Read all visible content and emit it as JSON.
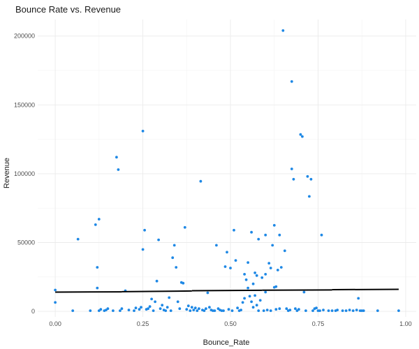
{
  "chart_data": {
    "type": "scatter",
    "title": "Bounce Rate vs. Revenue",
    "xlabel": "Bounce_Rate",
    "ylabel": "Revenue",
    "xlim": [
      -0.05,
      1.03
    ],
    "ylim": [
      -4000,
      212000
    ],
    "x_ticks": [
      0,
      0.25,
      0.5,
      0.75,
      1
    ],
    "x_tick_labels": [
      "0.00",
      "0.25",
      "0.50",
      "0.75",
      "1.00"
    ],
    "x_minor_ticks": [
      0.125,
      0.375,
      0.625,
      0.875
    ],
    "y_ticks": [
      0,
      50000,
      100000,
      150000,
      200000
    ],
    "y_tick_labels": [
      "0",
      "50000",
      "100000",
      "150000",
      "200000"
    ],
    "y_minor_ticks": [
      25000,
      75000,
      125000,
      175000
    ],
    "grid": true,
    "point_color": "#1e88e5",
    "trend_color": "#000000",
    "trend_line": {
      "segments": [
        [
          [
            0.0,
            14000
          ],
          [
            0.19,
            14200
          ]
        ],
        [
          [
            0.19,
            14300
          ],
          [
            0.39,
            14800
          ]
        ],
        [
          [
            0.39,
            15000
          ],
          [
            0.59,
            15300
          ]
        ],
        [
          [
            0.59,
            15400
          ],
          [
            0.79,
            15600
          ]
        ],
        [
          [
            0.79,
            15800
          ],
          [
            0.98,
            16000
          ]
        ]
      ]
    },
    "points": [
      [
        0.0,
        15500
      ],
      [
        0.0,
        6500
      ],
      [
        0.05,
        500
      ],
      [
        0.065,
        52500
      ],
      [
        0.1,
        500
      ],
      [
        0.115,
        63000
      ],
      [
        0.12,
        32000
      ],
      [
        0.12,
        17000
      ],
      [
        0.125,
        67000
      ],
      [
        0.125,
        500
      ],
      [
        0.13,
        1500
      ],
      [
        0.14,
        500
      ],
      [
        0.145,
        1000
      ],
      [
        0.15,
        2000
      ],
      [
        0.165,
        500
      ],
      [
        0.175,
        112000
      ],
      [
        0.18,
        103000
      ],
      [
        0.185,
        500
      ],
      [
        0.19,
        2000
      ],
      [
        0.2,
        15000
      ],
      [
        0.21,
        1000
      ],
      [
        0.225,
        500
      ],
      [
        0.23,
        2500
      ],
      [
        0.24,
        1500
      ],
      [
        0.245,
        3000
      ],
      [
        0.25,
        45000
      ],
      [
        0.25,
        131000
      ],
      [
        0.255,
        59000
      ],
      [
        0.26,
        1500
      ],
      [
        0.265,
        2000
      ],
      [
        0.27,
        3500
      ],
      [
        0.275,
        9000
      ],
      [
        0.28,
        500
      ],
      [
        0.285,
        7000
      ],
      [
        0.29,
        22000
      ],
      [
        0.295,
        52000
      ],
      [
        0.3,
        2000
      ],
      [
        0.305,
        4500
      ],
      [
        0.31,
        1000
      ],
      [
        0.315,
        500
      ],
      [
        0.32,
        3000
      ],
      [
        0.325,
        10000
      ],
      [
        0.33,
        500
      ],
      [
        0.335,
        39000
      ],
      [
        0.34,
        48000
      ],
      [
        0.345,
        32000
      ],
      [
        0.35,
        7000
      ],
      [
        0.355,
        2000
      ],
      [
        0.36,
        21000
      ],
      [
        0.365,
        20500
      ],
      [
        0.37,
        61000
      ],
      [
        0.375,
        1500
      ],
      [
        0.38,
        4000
      ],
      [
        0.385,
        500
      ],
      [
        0.39,
        3000
      ],
      [
        0.395,
        1000
      ],
      [
        0.4,
        2500
      ],
      [
        0.405,
        500
      ],
      [
        0.41,
        2000
      ],
      [
        0.415,
        94500
      ],
      [
        0.42,
        1000
      ],
      [
        0.425,
        500
      ],
      [
        0.43,
        2000
      ],
      [
        0.435,
        13500
      ],
      [
        0.44,
        3000
      ],
      [
        0.445,
        1000
      ],
      [
        0.45,
        500
      ],
      [
        0.455,
        500
      ],
      [
        0.46,
        48000
      ],
      [
        0.465,
        2000
      ],
      [
        0.47,
        1000
      ],
      [
        0.475,
        500
      ],
      [
        0.48,
        500
      ],
      [
        0.485,
        32500
      ],
      [
        0.49,
        43000
      ],
      [
        0.495,
        1500
      ],
      [
        0.5,
        31500
      ],
      [
        0.505,
        500
      ],
      [
        0.51,
        59000
      ],
      [
        0.515,
        37000
      ],
      [
        0.52,
        2500
      ],
      [
        0.525,
        500
      ],
      [
        0.53,
        1000
      ],
      [
        0.535,
        6500
      ],
      [
        0.54,
        27000
      ],
      [
        0.54,
        9500
      ],
      [
        0.545,
        23000
      ],
      [
        0.55,
        35500
      ],
      [
        0.55,
        17000
      ],
      [
        0.555,
        11000
      ],
      [
        0.56,
        57500
      ],
      [
        0.56,
        7000
      ],
      [
        0.565,
        20000
      ],
      [
        0.565,
        3000
      ],
      [
        0.57,
        28000
      ],
      [
        0.57,
        11500
      ],
      [
        0.575,
        26000
      ],
      [
        0.575,
        4500
      ],
      [
        0.58,
        52500
      ],
      [
        0.58,
        500
      ],
      [
        0.585,
        8000
      ],
      [
        0.59,
        24500
      ],
      [
        0.595,
        500
      ],
      [
        0.6,
        55500
      ],
      [
        0.6,
        27000
      ],
      [
        0.6,
        14000
      ],
      [
        0.605,
        1000
      ],
      [
        0.61,
        35000
      ],
      [
        0.615,
        31500
      ],
      [
        0.615,
        500
      ],
      [
        0.62,
        48000
      ],
      [
        0.625,
        62500
      ],
      [
        0.625,
        17500
      ],
      [
        0.63,
        18000
      ],
      [
        0.63,
        1500
      ],
      [
        0.635,
        30000
      ],
      [
        0.64,
        55500
      ],
      [
        0.64,
        2000
      ],
      [
        0.645,
        32000
      ],
      [
        0.65,
        204000
      ],
      [
        0.655,
        44000
      ],
      [
        0.66,
        2000
      ],
      [
        0.665,
        500
      ],
      [
        0.67,
        1000
      ],
      [
        0.675,
        167000
      ],
      [
        0.675,
        103500
      ],
      [
        0.68,
        96000
      ],
      [
        0.685,
        2000
      ],
      [
        0.69,
        500
      ],
      [
        0.695,
        1500
      ],
      [
        0.7,
        128500
      ],
      [
        0.705,
        127000
      ],
      [
        0.71,
        14000
      ],
      [
        0.715,
        500
      ],
      [
        0.72,
        98000
      ],
      [
        0.725,
        83500
      ],
      [
        0.73,
        96000
      ],
      [
        0.735,
        500
      ],
      [
        0.74,
        2000
      ],
      [
        0.745,
        2500
      ],
      [
        0.75,
        500
      ],
      [
        0.755,
        500
      ],
      [
        0.76,
        55500
      ],
      [
        0.765,
        1000
      ],
      [
        0.78,
        500
      ],
      [
        0.79,
        500
      ],
      [
        0.8,
        500
      ],
      [
        0.805,
        1000
      ],
      [
        0.82,
        500
      ],
      [
        0.83,
        500
      ],
      [
        0.84,
        1000
      ],
      [
        0.85,
        500
      ],
      [
        0.86,
        1000
      ],
      [
        0.865,
        9500
      ],
      [
        0.87,
        500
      ],
      [
        0.875,
        500
      ],
      [
        0.88,
        500
      ],
      [
        0.92,
        500
      ],
      [
        0.98,
        500
      ]
    ]
  }
}
